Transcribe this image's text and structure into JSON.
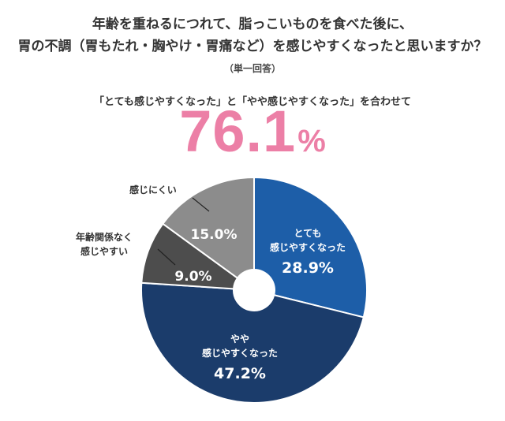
{
  "header": {
    "title_line1": "年齢を重ねるにつれて、脂っこいものを食べた後に、",
    "title_line2": "胃の不調（胃もたれ・胸やけ・胃痛など）を感じやすくなったと思いますか？",
    "note": "（単一回答）",
    "subtitle": "「とても感じやすくなった」と「やや感じやすくなった」を合わせて",
    "headline_value": "76.1",
    "headline_unit": "%"
  },
  "chart_data": {
    "type": "pie",
    "variant": "donut",
    "unit": "%",
    "start": "12 o'clock",
    "direction": "clockwise",
    "slices": [
      {
        "label": [
          "とても",
          "感じやすくなった"
        ],
        "value": 28.9,
        "color": "#1d5ea8"
      },
      {
        "label": [
          "やや",
          "感じやすくなった"
        ],
        "value": 47.2,
        "color": "#1b3c6b"
      },
      {
        "label": [
          "年齢関係なく",
          "感じやすい"
        ],
        "value": 9.0,
        "color": "#4d4d4d"
      },
      {
        "label": [
          "感じにくい"
        ],
        "value": 15.0,
        "color": "#8c8c8c"
      }
    ],
    "value_labels": [
      "28.9%",
      "47.2%",
      "9.0%",
      "15.0%"
    ]
  }
}
